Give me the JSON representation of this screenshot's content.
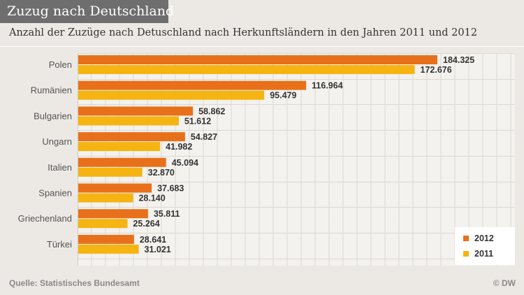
{
  "header": {
    "title": "Zuzug nach Deutschland",
    "subtitle": "Anzahl der Zuzüge nach Detuschland nach Herkunftsländern in den Jahren 2011 und 2012"
  },
  "footer": {
    "source": "Quelle: Statistisches Bundesamt",
    "brand": "© DW"
  },
  "legend": {
    "items": [
      {
        "label": "2012",
        "color": "#e8701a"
      },
      {
        "label": "2011",
        "color": "#f5b411"
      }
    ]
  },
  "chart_data": {
    "type": "bar",
    "orientation": "horizontal",
    "title": "Zuzug nach Deutschland",
    "subtitle": "Anzahl der Zuzüge nach Detuschland nach Herkunftsländern in den Jahren 2011 und 2012",
    "xlabel": "",
    "ylabel": "",
    "xlim": [
      0,
      200000
    ],
    "grid": true,
    "legend_position": "bottom-right",
    "categories": [
      "Polen",
      "Rumänien",
      "Bulgarien",
      "Ungarn",
      "Italien",
      "Spanien",
      "Griechenland",
      "Türkei"
    ],
    "series": [
      {
        "name": "2012",
        "color": "#e8701a",
        "values": [
          184325,
          116964,
          58862,
          54827,
          45094,
          37683,
          35811,
          28641
        ],
        "labels": [
          "184.325",
          "116.964",
          "58.862",
          "54.827",
          "45.094",
          "37.683",
          "35.811",
          "28.641"
        ]
      },
      {
        "name": "2011",
        "color": "#f5b411",
        "values": [
          172676,
          95479,
          51612,
          41982,
          32870,
          28140,
          25264,
          31021
        ],
        "labels": [
          "172.676",
          "95.479",
          "51.612",
          "41.982",
          "32.870",
          "28.140",
          "25.264",
          "31.021"
        ]
      }
    ]
  }
}
